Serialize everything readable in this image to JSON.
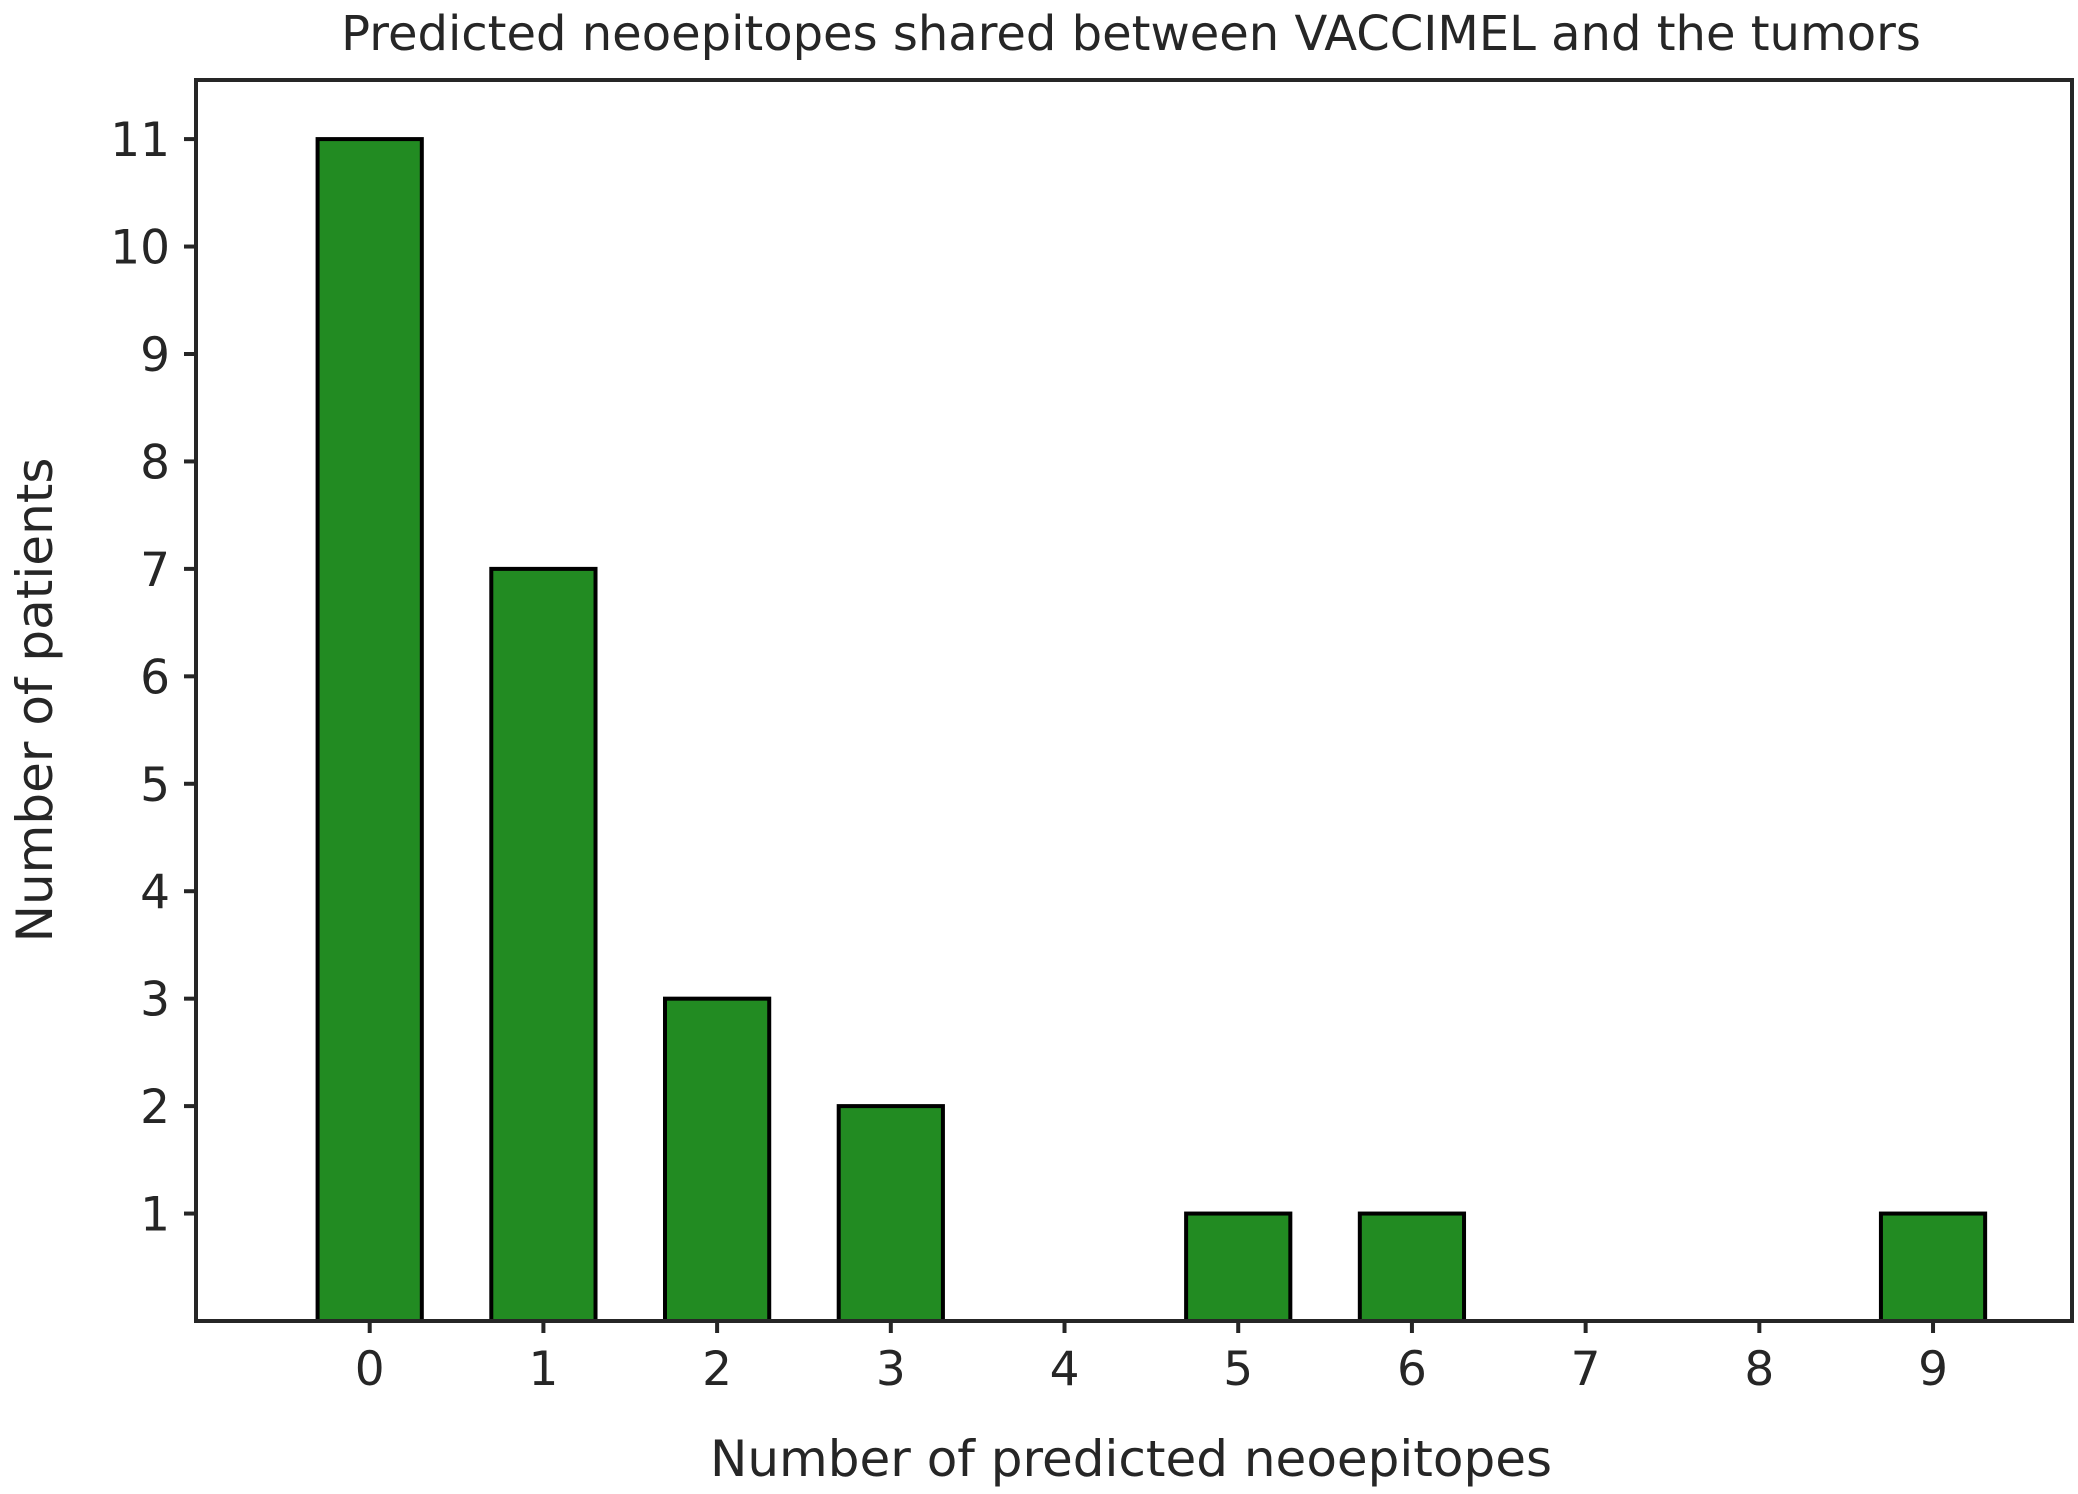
{
  "chart_data": {
    "type": "bar",
    "title": "Predicted neoepitopes shared between VACCIMEL and the tumors",
    "xlabel": "Number of predicted neoepitopes",
    "ylabel": "Number of patients",
    "categories": [
      "0",
      "1",
      "2",
      "3",
      "4",
      "5",
      "6",
      "7",
      "8",
      "9"
    ],
    "values": [
      11,
      7,
      3,
      2,
      0,
      1,
      1,
      0,
      0,
      1
    ],
    "yticks": [
      "1",
      "2",
      "3",
      "4",
      "5",
      "6",
      "7",
      "8",
      "9",
      "10",
      "11"
    ],
    "ylim": [
      0,
      11.55
    ],
    "xlim": [
      -1,
      9.8
    ],
    "bar_color": "#228b22",
    "edge_color": "#000000",
    "grid": false,
    "legend": "none"
  }
}
